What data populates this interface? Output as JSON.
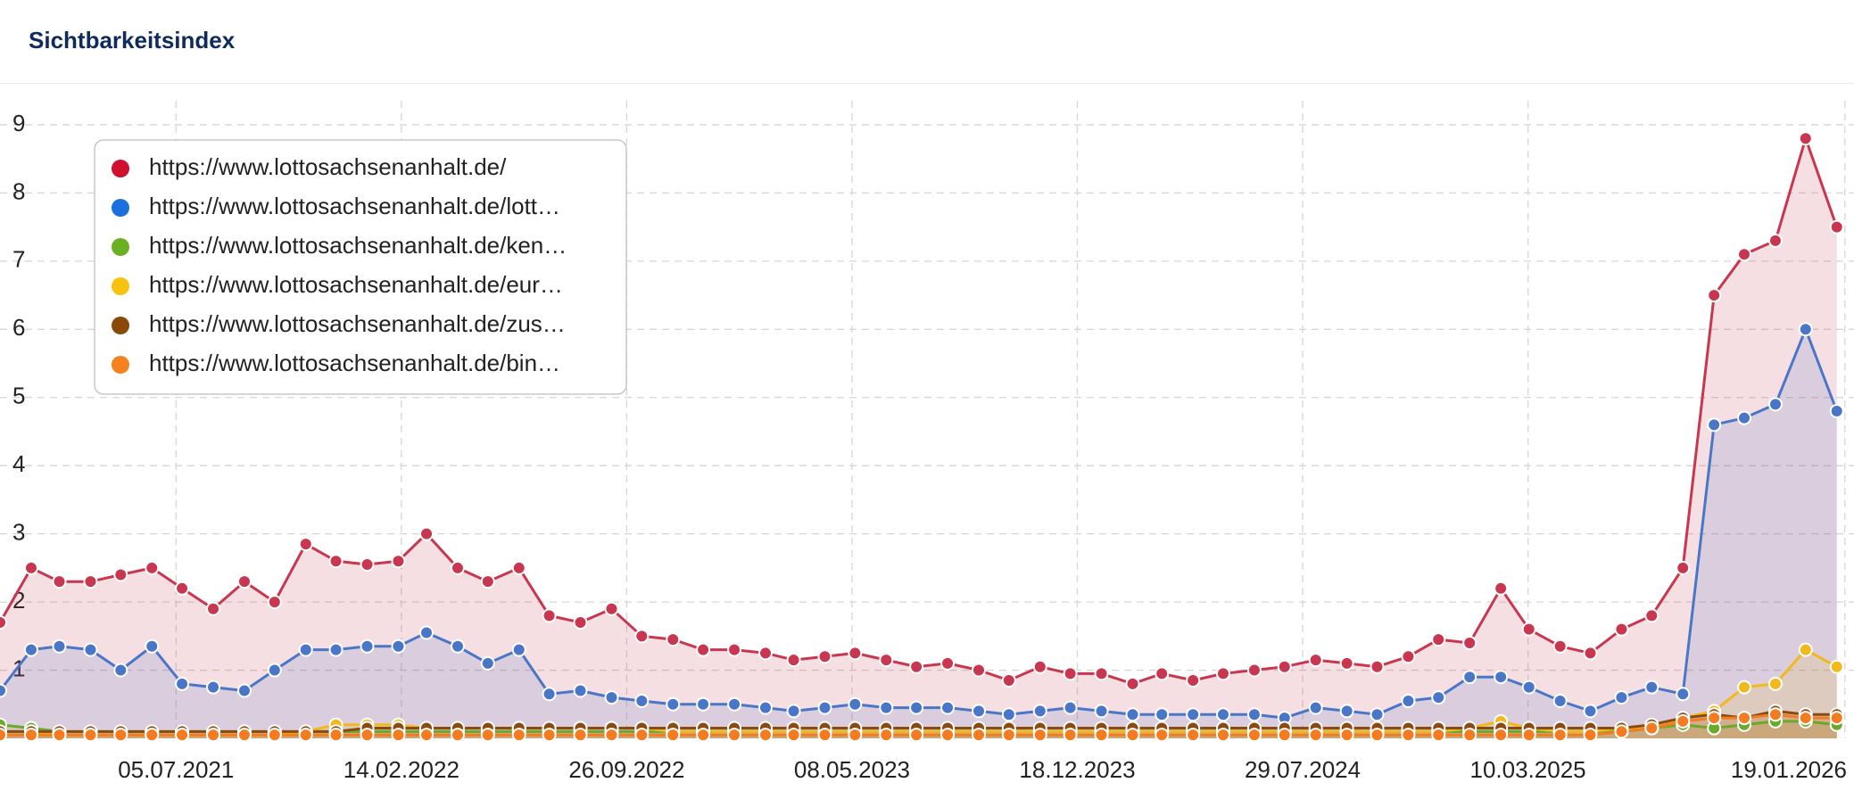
{
  "chart_data": {
    "type": "area",
    "title": "Sichtbarkeitsindex",
    "x": [
      "11.01.2021",
      "11.02.2021",
      "11.03.2021",
      "11.04.2021",
      "11.05.2021",
      "11.06.2021",
      "11.07.2021",
      "11.08.2021",
      "11.09.2021",
      "11.10.2021",
      "11.11.2021",
      "11.12.2021",
      "11.01.2022",
      "11.02.2022",
      "11.03.2022",
      "11.04.2022",
      "11.05.2022",
      "11.06.2022",
      "11.07.2022",
      "11.08.2022",
      "11.09.2022",
      "11.10.2022",
      "11.11.2022",
      "11.12.2022",
      "11.01.2023",
      "11.02.2023",
      "11.03.2023",
      "11.04.2023",
      "11.05.2023",
      "11.06.2023",
      "11.07.2023",
      "11.08.2023",
      "11.09.2023",
      "11.10.2023",
      "11.11.2023",
      "11.12.2023",
      "11.01.2024",
      "11.02.2024",
      "11.03.2024",
      "11.04.2024",
      "11.05.2024",
      "11.06.2024",
      "11.07.2024",
      "11.08.2024",
      "11.09.2024",
      "11.10.2024",
      "11.11.2024",
      "11.12.2024",
      "11.01.2025",
      "11.02.2025",
      "11.03.2025",
      "11.04.2025",
      "11.05.2025",
      "11.06.2025",
      "11.07.2025",
      "11.08.2025",
      "11.09.2025",
      "11.10.2025",
      "11.11.2025",
      "11.12.2025",
      "11.01.2026"
    ],
    "xlim": [
      "11.01.2021",
      "21.01.2026"
    ],
    "xticks": [
      "05.07.2021",
      "14.02.2022",
      "26.09.2022",
      "08.05.2023",
      "18.12.2023",
      "29.07.2024",
      "10.03.2025",
      "19.01.2026"
    ],
    "ylim": [
      0,
      9.3
    ],
    "yticks": [
      1,
      2,
      3,
      4,
      5,
      6,
      7,
      8,
      9
    ],
    "grid": true,
    "legend": "upper left",
    "series": [
      {
        "name": "https://www.lottosachsenanhalt.de/",
        "color": "#c8374f",
        "legend_color": "#d0102f",
        "values": [
          1.7,
          2.5,
          2.3,
          2.3,
          2.4,
          2.5,
          2.2,
          1.9,
          2.3,
          2.0,
          2.85,
          2.6,
          2.55,
          2.6,
          3.0,
          2.5,
          2.3,
          2.5,
          1.8,
          1.7,
          1.9,
          1.5,
          1.45,
          1.3,
          1.3,
          1.25,
          1.15,
          1.2,
          1.25,
          1.15,
          1.05,
          1.1,
          1.0,
          0.85,
          1.05,
          0.95,
          0.95,
          0.8,
          0.95,
          0.85,
          0.95,
          1.0,
          1.05,
          1.15,
          1.1,
          1.05,
          1.2,
          1.45,
          1.4,
          2.2,
          1.6,
          1.35,
          1.25,
          1.6,
          1.8,
          2.5,
          6.5,
          7.1,
          7.3,
          8.8,
          7.5
        ]
      },
      {
        "name": "https://www.lottosachsenanhalt.de/lott…",
        "color": "#4a76c8",
        "legend_color": "#1d6fdc",
        "values": [
          0.7,
          1.3,
          1.35,
          1.3,
          1.0,
          1.35,
          0.8,
          0.75,
          0.7,
          1.0,
          1.3,
          1.3,
          1.35,
          1.35,
          1.55,
          1.35,
          1.1,
          1.3,
          0.65,
          0.7,
          0.6,
          0.55,
          0.5,
          0.5,
          0.5,
          0.45,
          0.4,
          0.45,
          0.5,
          0.45,
          0.45,
          0.45,
          0.4,
          0.35,
          0.4,
          0.45,
          0.4,
          0.35,
          0.35,
          0.35,
          0.35,
          0.35,
          0.3,
          0.45,
          0.4,
          0.35,
          0.55,
          0.6,
          0.9,
          0.9,
          0.75,
          0.55,
          0.4,
          0.6,
          0.75,
          0.65,
          4.6,
          4.7,
          4.9,
          6.0,
          4.8
        ]
      },
      {
        "name": "https://www.lottosachsenanhalt.de/ken…",
        "color": "#6aaa2a",
        "legend_color": "#6ab023",
        "values": [
          0.2,
          0.15,
          0.1,
          0.1,
          0.1,
          0.1,
          0.1,
          0.1,
          0.1,
          0.1,
          0.1,
          0.1,
          0.1,
          0.1,
          0.1,
          0.1,
          0.1,
          0.1,
          0.1,
          0.1,
          0.1,
          0.1,
          0.1,
          0.1,
          0.1,
          0.1,
          0.1,
          0.1,
          0.1,
          0.1,
          0.1,
          0.1,
          0.1,
          0.1,
          0.1,
          0.1,
          0.1,
          0.1,
          0.1,
          0.1,
          0.1,
          0.1,
          0.1,
          0.1,
          0.1,
          0.1,
          0.1,
          0.1,
          0.1,
          0.1,
          0.1,
          0.1,
          0.1,
          0.1,
          0.15,
          0.2,
          0.15,
          0.2,
          0.25,
          0.25,
          0.2
        ]
      },
      {
        "name": "https://www.lottosachsenanhalt.de/eur…",
        "color": "#f2b91c",
        "legend_color": "#f8c30f",
        "values": [
          0.1,
          0.1,
          0.05,
          0.05,
          0.05,
          0.05,
          0.05,
          0.05,
          0.05,
          0.05,
          0.1,
          0.2,
          0.2,
          0.2,
          0.15,
          0.15,
          0.15,
          0.15,
          0.15,
          0.15,
          0.15,
          0.15,
          0.1,
          0.1,
          0.1,
          0.1,
          0.1,
          0.1,
          0.1,
          0.1,
          0.1,
          0.1,
          0.1,
          0.1,
          0.1,
          0.1,
          0.1,
          0.1,
          0.1,
          0.1,
          0.1,
          0.1,
          0.1,
          0.1,
          0.1,
          0.1,
          0.1,
          0.1,
          0.15,
          0.25,
          0.15,
          0.1,
          0.1,
          0.15,
          0.15,
          0.3,
          0.4,
          0.75,
          0.8,
          1.3,
          1.05
        ]
      },
      {
        "name": "https://www.lottosachsenanhalt.de/zus…",
        "color": "#8b4a0f",
        "legend_color": "#8a4a06",
        "values": [
          0.1,
          0.1,
          0.1,
          0.1,
          0.1,
          0.1,
          0.1,
          0.1,
          0.1,
          0.1,
          0.1,
          0.1,
          0.15,
          0.15,
          0.15,
          0.15,
          0.15,
          0.15,
          0.15,
          0.15,
          0.15,
          0.15,
          0.15,
          0.15,
          0.15,
          0.15,
          0.15,
          0.15,
          0.15,
          0.15,
          0.15,
          0.15,
          0.15,
          0.15,
          0.15,
          0.15,
          0.15,
          0.15,
          0.15,
          0.15,
          0.15,
          0.15,
          0.15,
          0.15,
          0.15,
          0.15,
          0.15,
          0.15,
          0.15,
          0.15,
          0.15,
          0.15,
          0.15,
          0.15,
          0.2,
          0.3,
          0.35,
          0.3,
          0.4,
          0.35,
          0.35
        ]
      },
      {
        "name": "https://www.lottosachsenanhalt.de/bin…",
        "color": "#f47b20",
        "legend_color": "#f58220",
        "values": [
          0.05,
          0.05,
          0.05,
          0.05,
          0.05,
          0.05,
          0.05,
          0.05,
          0.05,
          0.05,
          0.05,
          0.05,
          0.05,
          0.05,
          0.05,
          0.05,
          0.05,
          0.05,
          0.05,
          0.05,
          0.05,
          0.05,
          0.05,
          0.05,
          0.05,
          0.05,
          0.05,
          0.05,
          0.05,
          0.05,
          0.05,
          0.05,
          0.05,
          0.05,
          0.05,
          0.05,
          0.05,
          0.05,
          0.05,
          0.05,
          0.05,
          0.05,
          0.05,
          0.05,
          0.05,
          0.05,
          0.05,
          0.05,
          0.05,
          0.05,
          0.05,
          0.05,
          0.05,
          0.1,
          0.15,
          0.25,
          0.3,
          0.3,
          0.35,
          0.3,
          0.3
        ]
      }
    ]
  }
}
